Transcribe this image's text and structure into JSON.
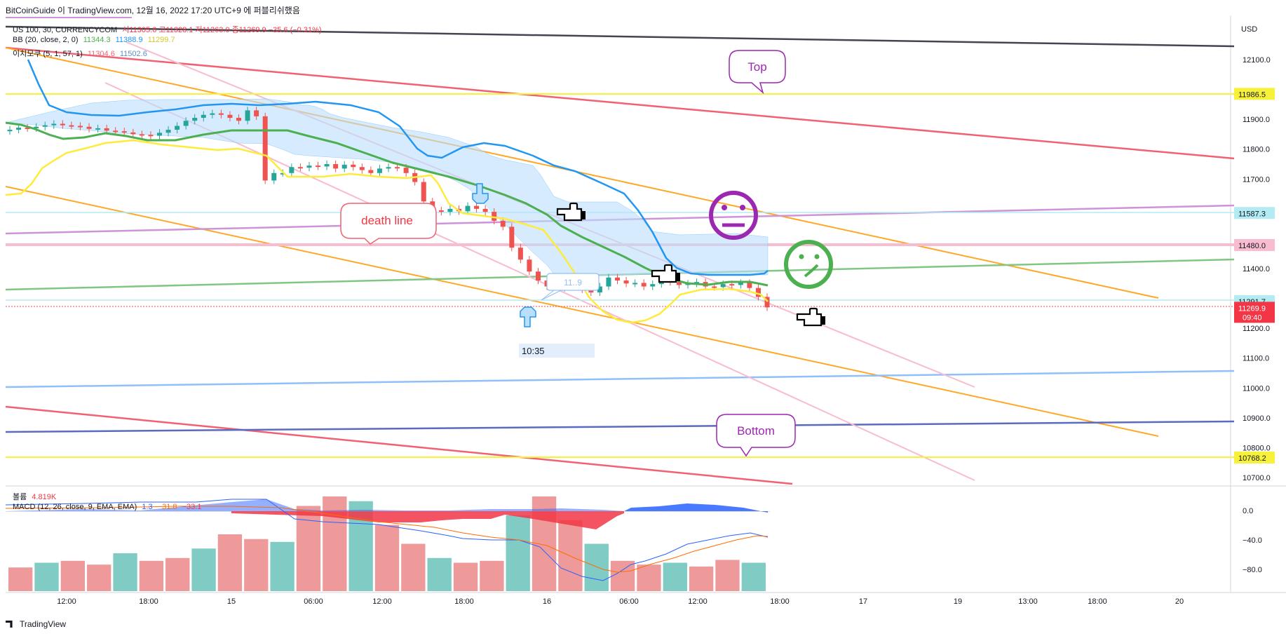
{
  "header": {
    "text": "BitCoinGuide 이 TradingView.com, 12월 16, 2022 17:20 UTC+9 에 퍼블리쉬했음"
  },
  "legend": {
    "symbol": "US 100, 30, CURRENCYCOM",
    "ohlc": "시11305.6  고11328.1  저11263.0  종11269.9  −35.6 (−0.31%)",
    "bb_label": "BB (20, close, 2, 0)",
    "bb_values": [
      "11344.3",
      "11388.9",
      "11299.7"
    ],
    "ichimoku_label": "이치모쿠 (5, 1, 57, 1)",
    "ichimoku_values": [
      "11304.6",
      "11502.6"
    ],
    "volume_label": "볼륨",
    "volume_value": "4.819K",
    "macd_label": "MACD (12, 26, close, 9, EMA, EMA)",
    "macd_values": [
      "1.3",
      "−31.8",
      "−33.1"
    ]
  },
  "axis": {
    "currency": "USD",
    "price_ticks": [
      "12100.0",
      "11900.0",
      "11800.0",
      "11700.0",
      "11400.0",
      "11200.0",
      "11100.0",
      "11000.0",
      "10900.0",
      "10800.0",
      "10700.0"
    ],
    "macd_ticks": [
      "0.0",
      "−40.0",
      "−80.0"
    ],
    "time_ticks": [
      "12:00",
      "18:00",
      "15",
      "06:00",
      "12:00",
      "18:00",
      "16",
      "06:00",
      "12:00",
      "18:00",
      "17",
      "19",
      "13:00",
      "18:00",
      "20"
    ],
    "labels": [
      {
        "text": "11986.5",
        "bg": "#f7f13a",
        "fg": "#131722"
      },
      {
        "text": "11587.3",
        "bg": "#b2ebf2",
        "fg": "#131722"
      },
      {
        "text": "11480.0",
        "bg": "#f8bbd0",
        "fg": "#131722"
      },
      {
        "text": "11291.7",
        "bg": "#b2ebf2",
        "fg": "#131722"
      },
      {
        "text": "11269.9",
        "text2": "09:40",
        "bg": "#f23645",
        "fg": "#ffffff"
      },
      {
        "text": "10768.2",
        "bg": "#f7f13a",
        "fg": "#131722"
      }
    ]
  },
  "annotations": {
    "top": "Top",
    "bottom": "Bottom",
    "death_line": "death line",
    "cursor_time": "10:35",
    "price_box": "11..9"
  },
  "footer": {
    "brand": "TradingView"
  },
  "colors": {
    "up": "#26a69a",
    "down": "#ef5350",
    "bb_mid": "#4caf50",
    "bb_upper": "#2196f3",
    "bb_lower": "#ffeb3b",
    "orange": "#ffa726",
    "red_line": "#f06272",
    "purple": "#9c27b0"
  },
  "chart_data": {
    "type": "candlestick",
    "title": "US 100, 30, CURRENCYCOM",
    "ylabel": "USD",
    "ylim": [
      10670,
      12170
    ],
    "last_price": 11269.9,
    "close_series": [
      11865,
      11872,
      11870,
      11875,
      11880,
      11885,
      11880,
      11878,
      11875,
      11868,
      11870,
      11862,
      11860,
      11856,
      11850,
      11848,
      11845,
      11855,
      11865,
      11878,
      11895,
      11905,
      11915,
      11920,
      11915,
      11905,
      11895,
      11930,
      11910,
      11695,
      11720,
      11720,
      11740,
      11738,
      11745,
      11742,
      11750,
      11735,
      11748,
      11740,
      11730,
      11720,
      11735,
      11740,
      11738,
      11720,
      11690,
      11625,
      11595,
      11590,
      11600,
      11592,
      11610,
      11600,
      11590,
      11560,
      11540,
      11470,
      11430,
      11390,
      11360,
      11340,
      11335,
      11360,
      11340,
      11330,
      11320,
      11340,
      11370,
      11360,
      11350,
      11352,
      11340,
      11348,
      11360,
      11355,
      11345,
      11350,
      11355,
      11340,
      11338,
      11348,
      11345,
      11352,
      11335,
      11305,
      11270
    ],
    "bb_upper": [
      12120,
      11990,
      11960,
      11950,
      11940,
      11965,
      11920,
      11870,
      11810,
      11810,
      11745,
      11670,
      11590,
      11470,
      11400,
      11390
    ],
    "bb_middle": [
      11885,
      11865,
      11860,
      11860,
      11850,
      11860,
      11880,
      11830,
      11780,
      11720,
      11660,
      11560,
      11470,
      11390,
      11355,
      11345
    ],
    "bb_lower": [
      11680,
      11770,
      11800,
      11790,
      11820,
      11790,
      11770,
      11710,
      11700,
      11580,
      11520,
      11330,
      11225,
      11290,
      11310,
      11300
    ],
    "volume_heights_relative": [
      0.25,
      0.3,
      0.32,
      0.28,
      0.4,
      0.32,
      0.35,
      0.45,
      0.6,
      0.55,
      0.52,
      0.9,
      1.0,
      0.95,
      0.7,
      0.5,
      0.35,
      0.3,
      0.32,
      0.8,
      1.0,
      0.75,
      0.5,
      0.32,
      0.28,
      0.3,
      0.26,
      0.33,
      0.3
    ],
    "macd_last": 1.3,
    "signal_last": -31.8,
    "histogram_last": -33.1,
    "macd_ylim": [
      -100,
      20
    ]
  }
}
